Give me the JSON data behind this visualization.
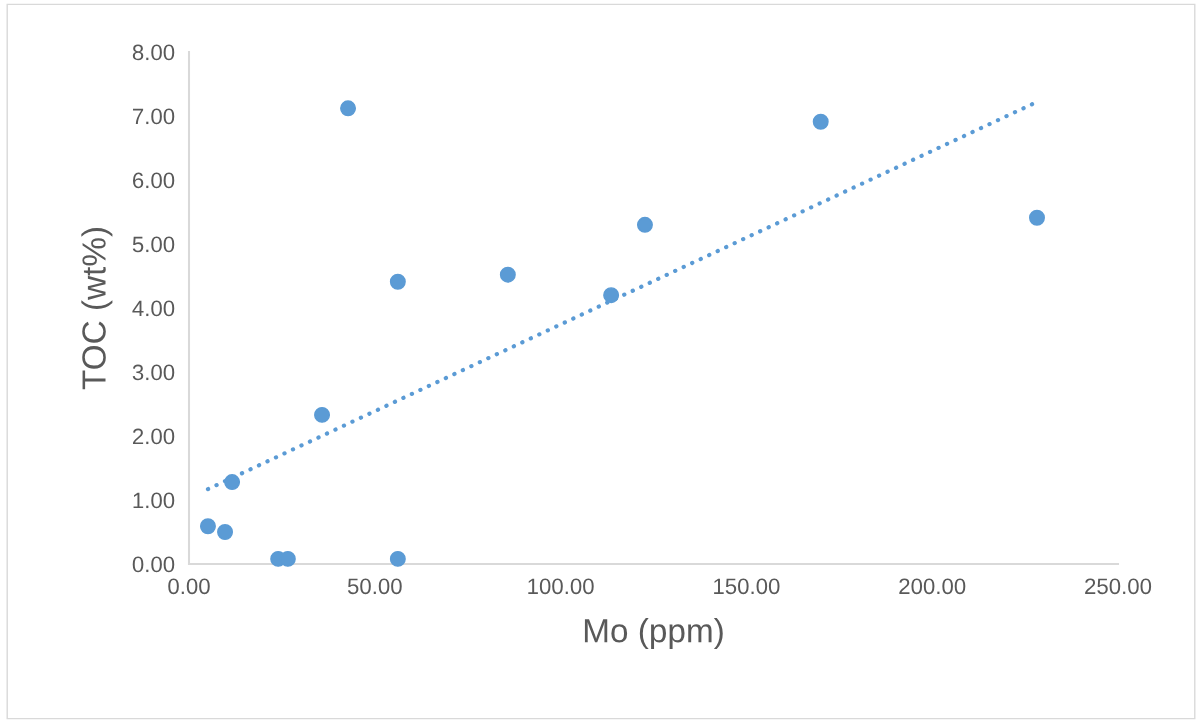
{
  "chart_data": {
    "type": "scatter",
    "xlabel": "Mo (ppm)",
    "ylabel": "TOC (wt%)",
    "xlim": [
      0,
      250
    ],
    "ylim": [
      0,
      8
    ],
    "xticks": [
      {
        "value": 0,
        "label": "0.00"
      },
      {
        "value": 50,
        "label": "50.00"
      },
      {
        "value": 100,
        "label": "100.00"
      },
      {
        "value": 150,
        "label": "150.00"
      },
      {
        "value": 200,
        "label": "200.00"
      },
      {
        "value": 250,
        "label": "250.00"
      }
    ],
    "yticks": [
      {
        "value": 0,
        "label": "0.00"
      },
      {
        "value": 1,
        "label": "1.00"
      },
      {
        "value": 2,
        "label": "2.00"
      },
      {
        "value": 3,
        "label": "3.00"
      },
      {
        "value": 4,
        "label": "4.00"
      },
      {
        "value": 5,
        "label": "5.00"
      },
      {
        "value": 6,
        "label": "6.00"
      },
      {
        "value": 7,
        "label": "7.00"
      },
      {
        "value": 8,
        "label": "8.00"
      }
    ],
    "grid": false,
    "series": [
      {
        "color": "#5b9bd5",
        "marker": "circle",
        "x": [
          5.1,
          9.7,
          11.6,
          24,
          26.6,
          35.8,
          42.8,
          56.2,
          56.2,
          85.8,
          113.6,
          122.7,
          170,
          228.2
        ],
        "values": [
          0.59,
          0.5,
          1.28,
          0.08,
          0.08,
          2.33,
          7.12,
          4.41,
          0.08,
          4.52,
          4.2,
          5.3,
          6.91,
          5.41
        ]
      },
      {
        "type": "line",
        "color": "#5b9bd5",
        "line_style": "dotted",
        "x": [
          5.1,
          228.2
        ],
        "values": [
          1.17,
          7.22
        ]
      }
    ]
  }
}
